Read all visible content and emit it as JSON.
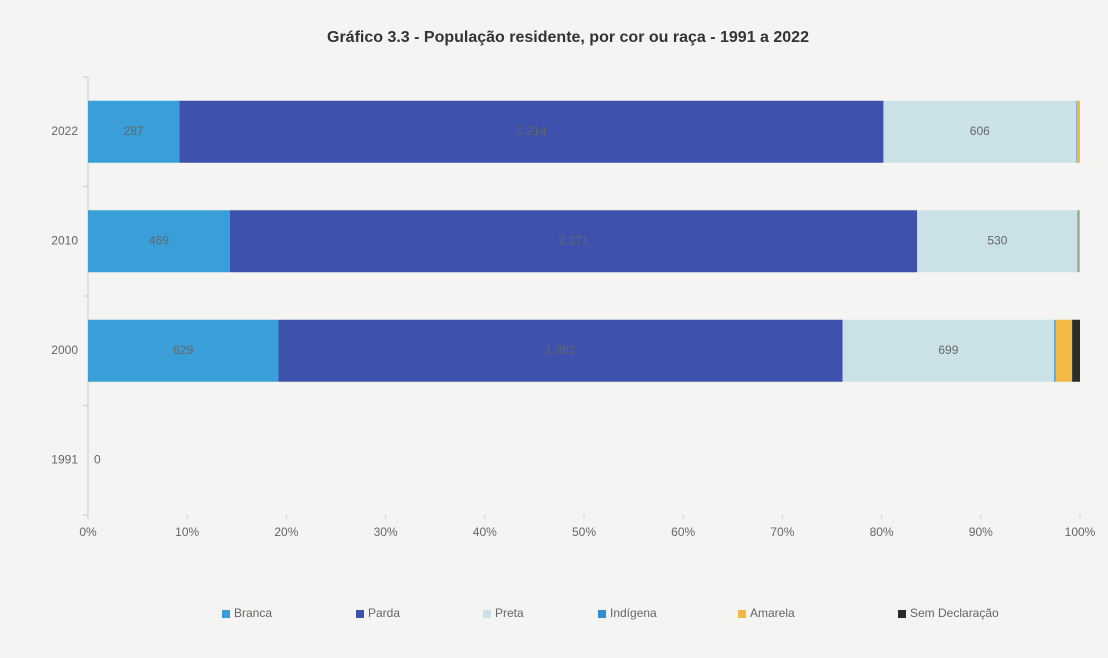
{
  "chart_data": {
    "type": "bar",
    "orientation": "horizontal",
    "stacking": "percent",
    "title": "Gráfico 3.3 - População residente, por cor ou raça - 1991 a 2022",
    "categories": [
      "2022",
      "2010",
      "2000",
      "1991"
    ],
    "series": [
      {
        "name": "Branca",
        "color": "#3a9fd8",
        "values": [
          287,
          469,
          629,
          0
        ],
        "data_labels": true
      },
      {
        "name": "Parda",
        "color": "#3d51ad",
        "values": [
          2214,
          2271,
          1862,
          null
        ],
        "value_labels": [
          "2.214",
          "2.271",
          "1.862",
          null
        ],
        "data_labels": true
      },
      {
        "name": "Preta",
        "color": "#c9e1e7",
        "values": [
          606,
          530,
          699,
          null
        ],
        "data_labels": true
      },
      {
        "name": "Indígena",
        "color": "#2f8fd2",
        "values": [
          2,
          3,
          4,
          null
        ],
        "data_labels": false
      },
      {
        "name": "Amarela",
        "color": "#f4b844",
        "values": [
          10,
          5,
          55,
          null
        ],
        "data_labels": false
      },
      {
        "name": "Sem Declaração",
        "color": "#2b2b2b",
        "values": [
          0,
          0,
          26,
          null
        ],
        "data_labels": false
      }
    ],
    "xlim": [
      0,
      100
    ],
    "xticks": [
      {
        "value": 0,
        "label": "0%"
      },
      {
        "value": 10,
        "label": "10%"
      },
      {
        "value": 20,
        "label": "20%"
      },
      {
        "value": 30,
        "label": "30%"
      },
      {
        "value": 40,
        "label": "40%"
      },
      {
        "value": 50,
        "label": "50%"
      },
      {
        "value": 60,
        "label": "60%"
      },
      {
        "value": 70,
        "label": "70%"
      },
      {
        "value": 80,
        "label": "80%"
      },
      {
        "value": 90,
        "label": "90%"
      },
      {
        "value": 100,
        "label": "100%"
      }
    ],
    "grid": false,
    "legend": "bottom"
  }
}
